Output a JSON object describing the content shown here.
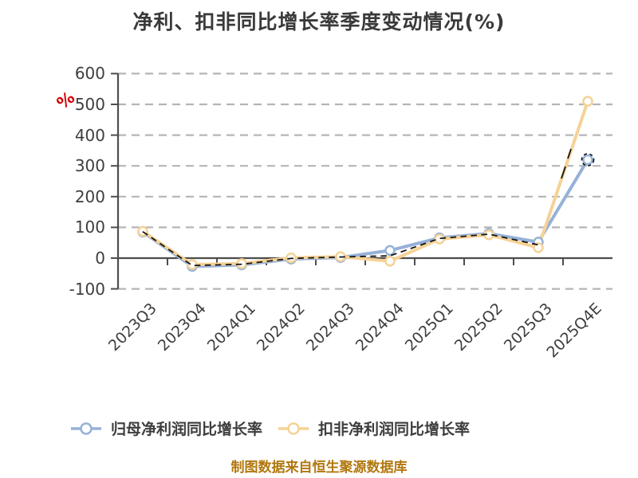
{
  "title": "净利、扣非同比增长率季度变动情况(%)",
  "y_axis_unit": "%",
  "footer": "制图数据来自恒生聚源数据库",
  "colors": {
    "series_net_profit": "#96b1d8",
    "series_nonrecurring": "#f5d296",
    "grid": "#b5b5b5",
    "axis": "#4d4d4d",
    "overlap_dash": "#151515",
    "title_text": "#3a3a3a",
    "tick_text": "#3e3e3e",
    "unit_label": "#d40000",
    "footer_text": "#b1770d"
  },
  "chart_data": {
    "type": "line",
    "title": "净利、扣非同比增长率季度变动情况(%)",
    "xlabel": "",
    "ylabel": "%",
    "ylim": [
      -100,
      600
    ],
    "y_tick_step": 100,
    "grid": "horizontal dashed",
    "legend_position": "bottom",
    "categories": [
      "2023Q3",
      "2023Q4",
      "2024Q1",
      "2024Q2",
      "2024Q3",
      "2024Q4",
      "2025Q1",
      "2025Q2",
      "2025Q3",
      "2025Q4E"
    ],
    "y_ticks": [
      600,
      500,
      400,
      300,
      200,
      100,
      0,
      -100
    ],
    "series": [
      {
        "name": "归母净利润同比增长率",
        "color": "#96b1d8",
        "marker": "circle-open",
        "values": [
          85,
          -27,
          -22,
          -3,
          2,
          25,
          66,
          80,
          52,
          320
        ]
      },
      {
        "name": "扣非净利润同比增长率",
        "color": "#f5d296",
        "marker": "circle-open",
        "values": [
          87,
          -21,
          -18,
          1,
          5,
          -10,
          62,
          76,
          34,
          510
        ]
      }
    ]
  }
}
